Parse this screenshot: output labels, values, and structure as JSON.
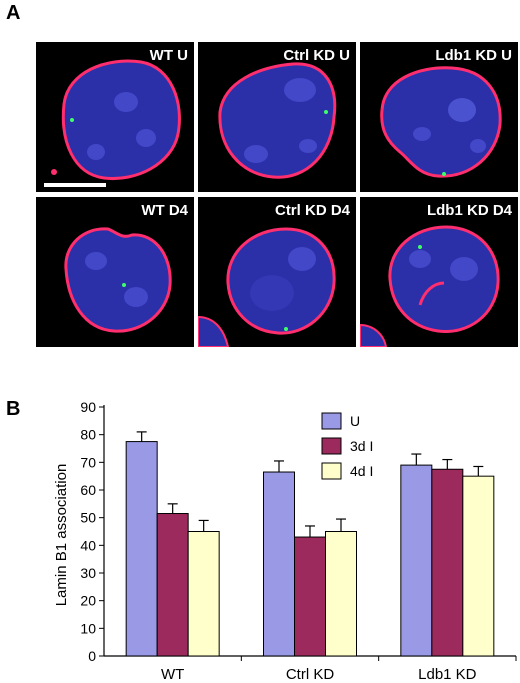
{
  "panel_a": {
    "letter": "A",
    "cells": [
      {
        "label": "WT U"
      },
      {
        "label": "Ctrl KD U"
      },
      {
        "label": "Ldb1 KD U"
      },
      {
        "label": "WT D4"
      },
      {
        "label": "Ctrl KD D4"
      },
      {
        "label": "Ldb1 KD D4"
      }
    ]
  },
  "panel_b": {
    "letter": "B"
  },
  "colors": {
    "nucleus": "#2b2fa8",
    "lamina": "#ff2e6e",
    "spot": "#3cff6a",
    "background": "#000000"
  },
  "chart_data": {
    "type": "bar",
    "title": "",
    "xlabel": "",
    "ylabel": "Lamin B1 association",
    "categories": [
      "WT",
      "Ctrl KD",
      "Ldb1 KD"
    ],
    "ylim": [
      0,
      90
    ],
    "yticks": [
      0,
      10,
      20,
      30,
      40,
      50,
      60,
      70,
      80,
      90
    ],
    "legend_position": "top-center",
    "series": [
      {
        "name": "U",
        "color": "#9999e6",
        "values": [
          77.5,
          66.5,
          69
        ],
        "errors": [
          3.5,
          4,
          4
        ]
      },
      {
        "name": "3d I",
        "color": "#9c2a5c",
        "values": [
          51.5,
          43,
          67.5
        ],
        "errors": [
          3.5,
          4,
          3.5
        ]
      },
      {
        "name": "4d I",
        "color": "#ffffcc",
        "values": [
          45,
          45,
          65
        ],
        "errors": [
          4,
          4.5,
          3.5
        ]
      }
    ]
  }
}
